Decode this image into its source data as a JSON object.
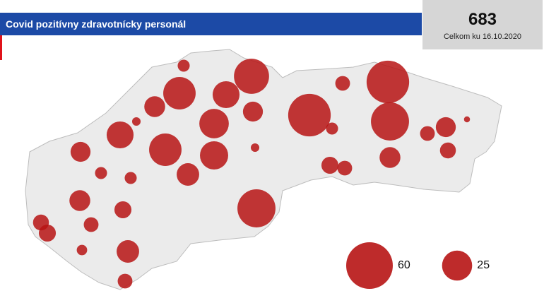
{
  "title": "Covid pozitívny zdravotnícky personál",
  "total": 683,
  "total_label": "Celkom ku 16.10.2020",
  "legend": [
    60,
    25
  ],
  "bubbles": [
    4,
    34,
    29,
    20,
    11,
    12,
    24,
    2,
    20,
    11,
    29,
    22,
    2,
    14,
    4,
    4,
    12,
    8,
    40,
    6,
    7,
    8,
    3,
    14,
    6,
    50,
    4,
    6,
    50,
    40,
    12,
    8,
    6,
    6,
    11,
    7,
    1
  ]
}
